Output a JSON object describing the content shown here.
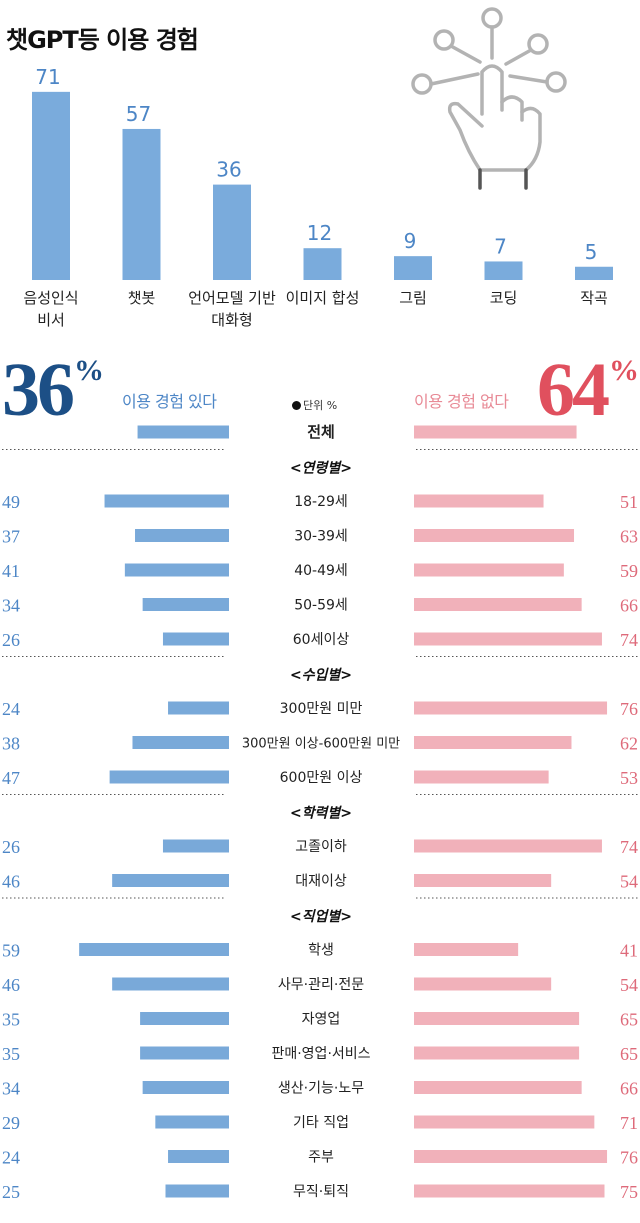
{
  "title": "챗GPT등 이용 경험",
  "colors": {
    "top_bar": "#7aabdc",
    "top_value": "#4d86c6",
    "yes_bar": "#79a9d9",
    "no_bar": "#f1b1ba",
    "yes_text": "#4d86c6",
    "no_text": "#de6a7a",
    "yes_big": "#1c4f86",
    "no_big": "#e0505e"
  },
  "icon": "hand-touch-network-icon",
  "chart_data": [
    {
      "type": "bar",
      "title": "챗GPT등 이용 경험",
      "unit": "%",
      "categories": [
        [
          "음성인식",
          "비서"
        ],
        [
          "챗봇"
        ],
        [
          "언어모델 기반",
          "대화형"
        ],
        [
          "이미지 합성"
        ],
        [
          "그림"
        ],
        [
          "코딩"
        ],
        [
          "작곡"
        ]
      ],
      "values": [
        71,
        57,
        36,
        12,
        9,
        7,
        5
      ]
    },
    {
      "type": "bar",
      "orientation": "diverging-horizontal",
      "unit_label": "단위 %",
      "summary": {
        "yes": {
          "value": "36",
          "unit": "%",
          "label": "이용 경험 있다"
        },
        "no": {
          "value": "64",
          "unit": "%",
          "label": "이용 경험 없다"
        }
      },
      "rows": [
        {
          "type": "total",
          "label": "전체",
          "yes": 36,
          "no": 64
        },
        {
          "type": "header",
          "label": "<연령별>"
        },
        {
          "label": "18-29세",
          "yes": 49,
          "no": 51
        },
        {
          "label": "30-39세",
          "yes": 37,
          "no": 63
        },
        {
          "label": "40-49세",
          "yes": 41,
          "no": 59
        },
        {
          "label": "50-59세",
          "yes": 34,
          "no": 66
        },
        {
          "label": "60세이상",
          "yes": 26,
          "no": 74
        },
        {
          "type": "header",
          "label": "<수입별>"
        },
        {
          "label": "300만원 미만",
          "yes": 24,
          "no": 76
        },
        {
          "label": "300만원 이상-600만원 미만",
          "yes": 38,
          "no": 62
        },
        {
          "label": "600만원 이상",
          "yes": 47,
          "no": 53
        },
        {
          "type": "header",
          "label": "<학력별>"
        },
        {
          "label": "고졸이하",
          "yes": 26,
          "no": 74
        },
        {
          "label": "대재이상",
          "yes": 46,
          "no": 54
        },
        {
          "type": "header",
          "label": "<직업별>"
        },
        {
          "label": "학생",
          "yes": 59,
          "no": 41
        },
        {
          "label": "사무·관리·전문",
          "yes": 46,
          "no": 54
        },
        {
          "label": "자영업",
          "yes": 35,
          "no": 65
        },
        {
          "label": "판매·영업·서비스",
          "yes": 35,
          "no": 65
        },
        {
          "label": "생산·기능·노무",
          "yes": 34,
          "no": 66
        },
        {
          "label": "기타 직업",
          "yes": 29,
          "no": 71
        },
        {
          "label": "주부",
          "yes": 24,
          "no": 76
        },
        {
          "label": "무직·퇴직",
          "yes": 25,
          "no": 75
        }
      ]
    }
  ]
}
